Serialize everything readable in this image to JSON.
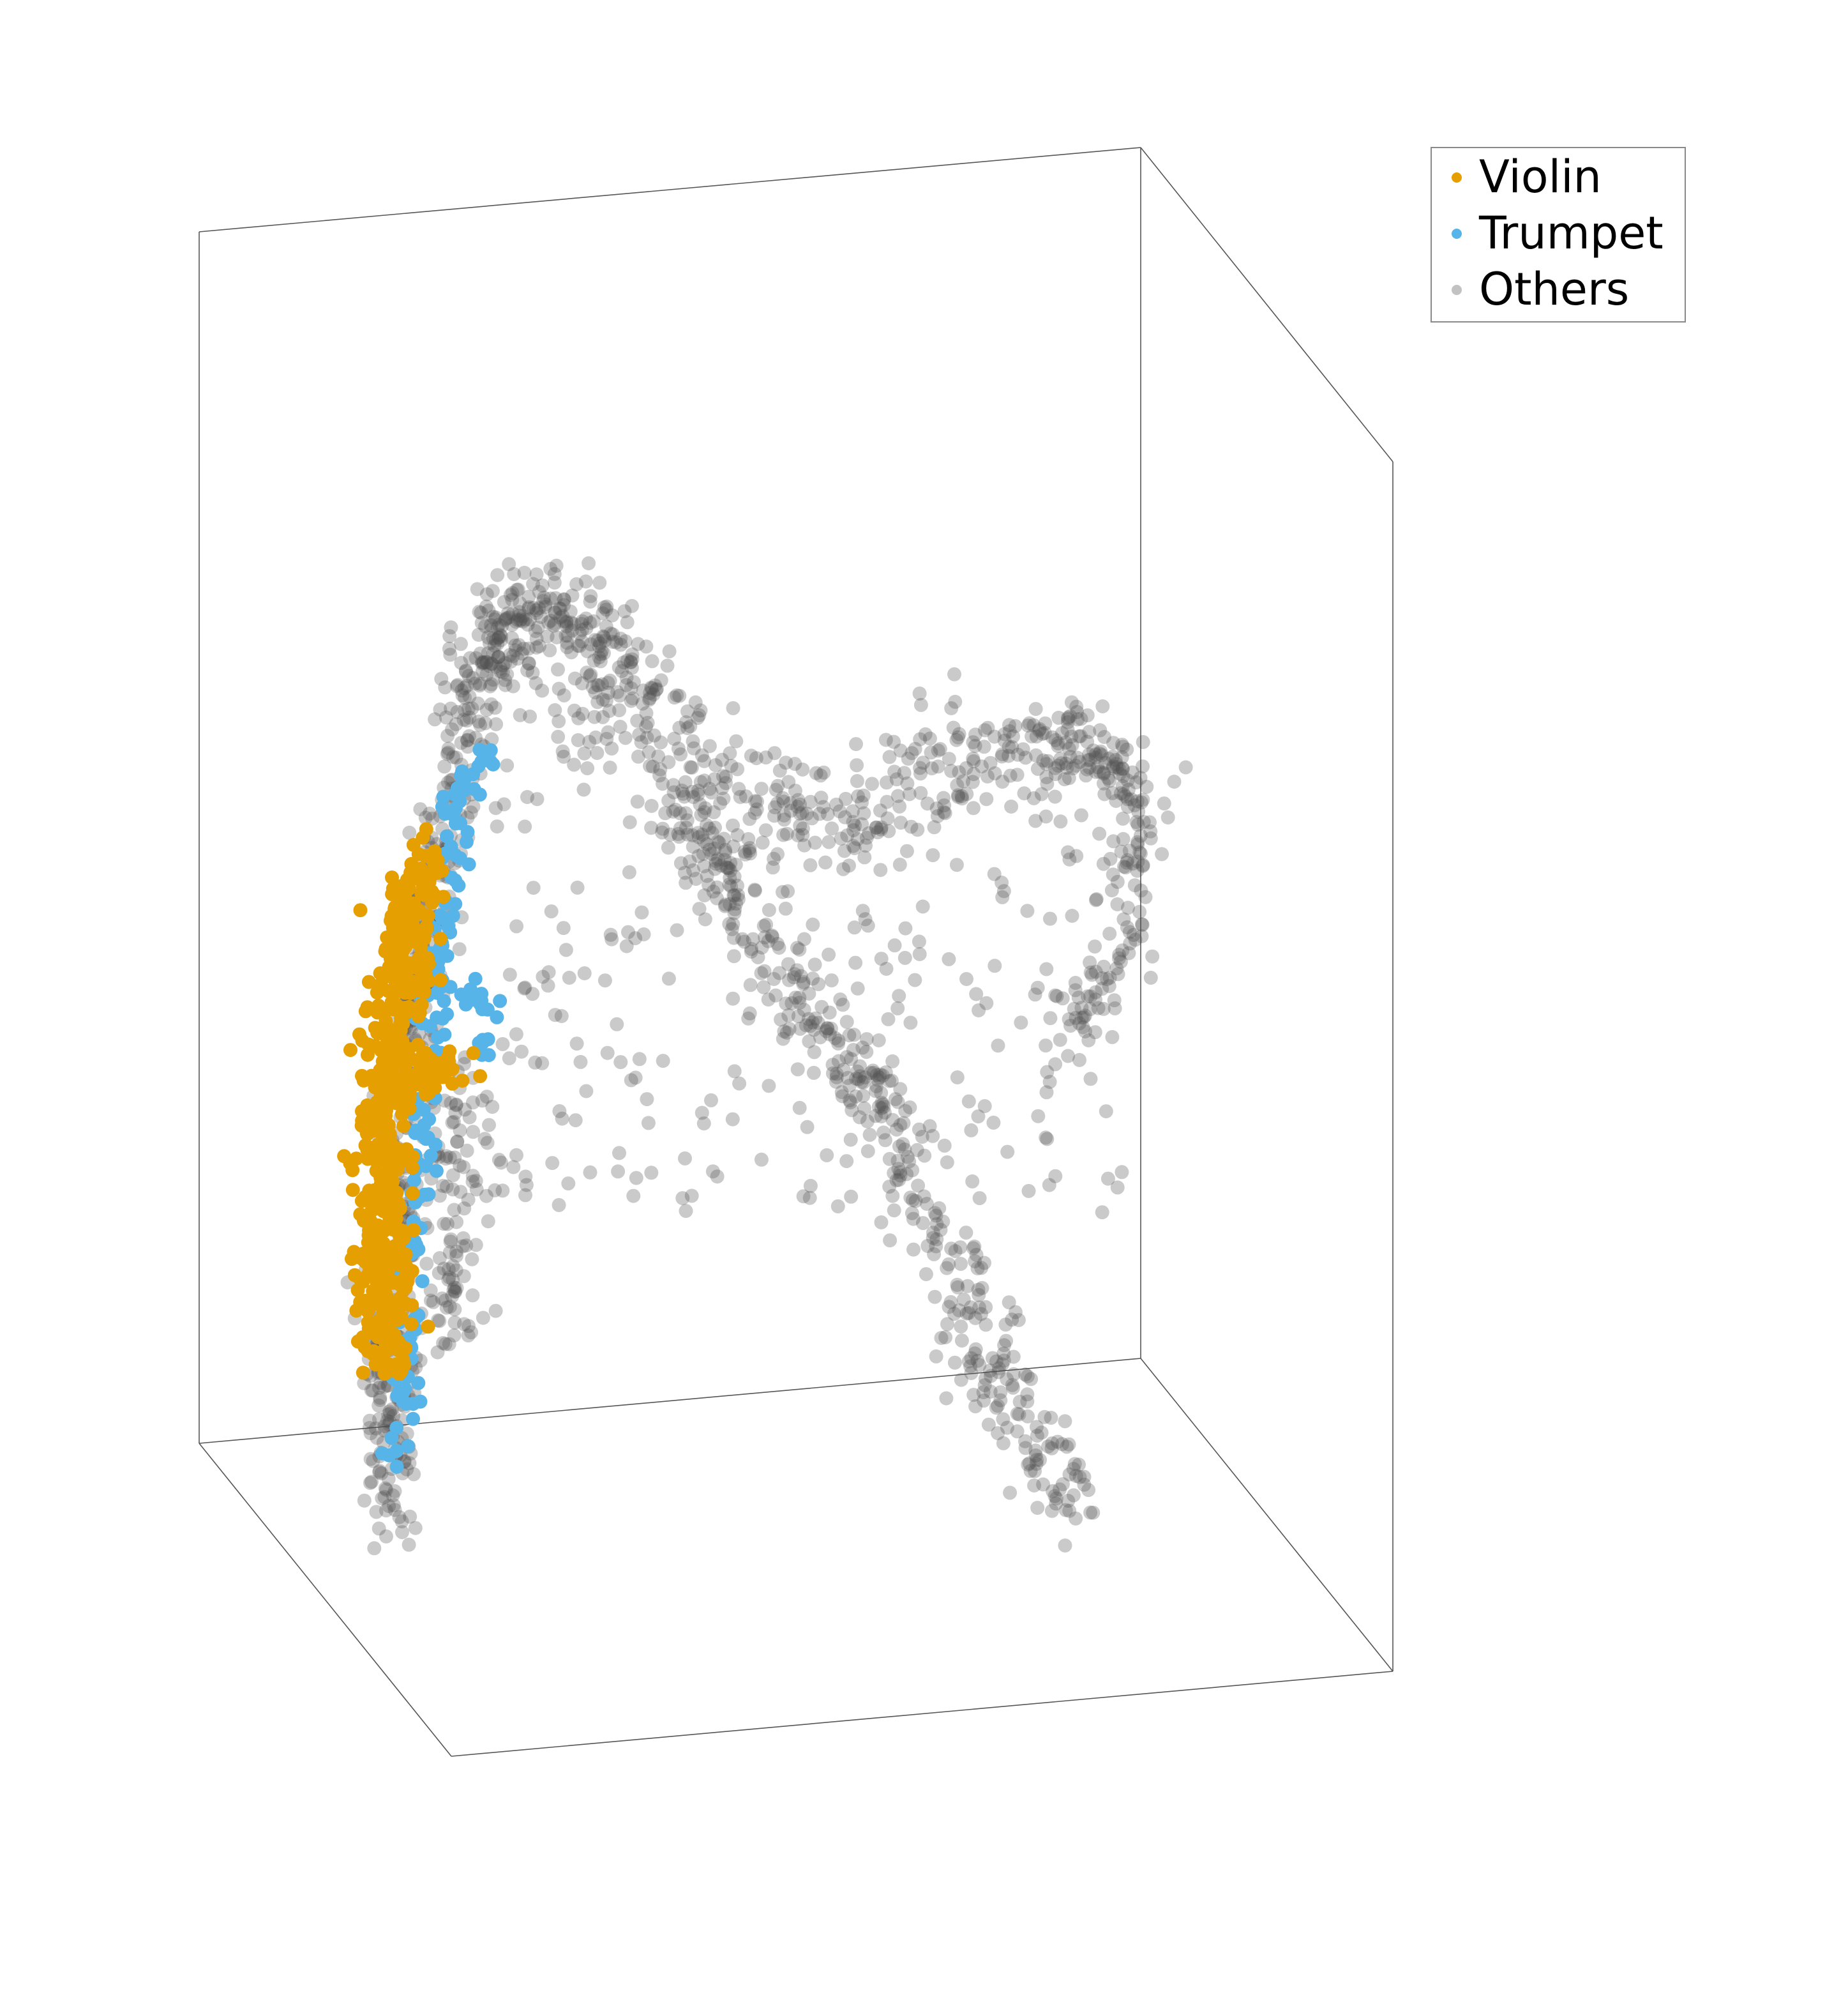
{
  "chart_data": {
    "type": "scatter",
    "projection": "3d",
    "axes_visible": false,
    "grid": false,
    "legend_position": "top-right",
    "series": [
      {
        "name": "Violin",
        "color": "#E69F00",
        "alpha": 1.0
      },
      {
        "name": "Trumpet",
        "color": "#56B4E9",
        "alpha": 1.0
      },
      {
        "name": "Others",
        "color": "#505050",
        "alpha": 0.3
      }
    ]
  }
}
